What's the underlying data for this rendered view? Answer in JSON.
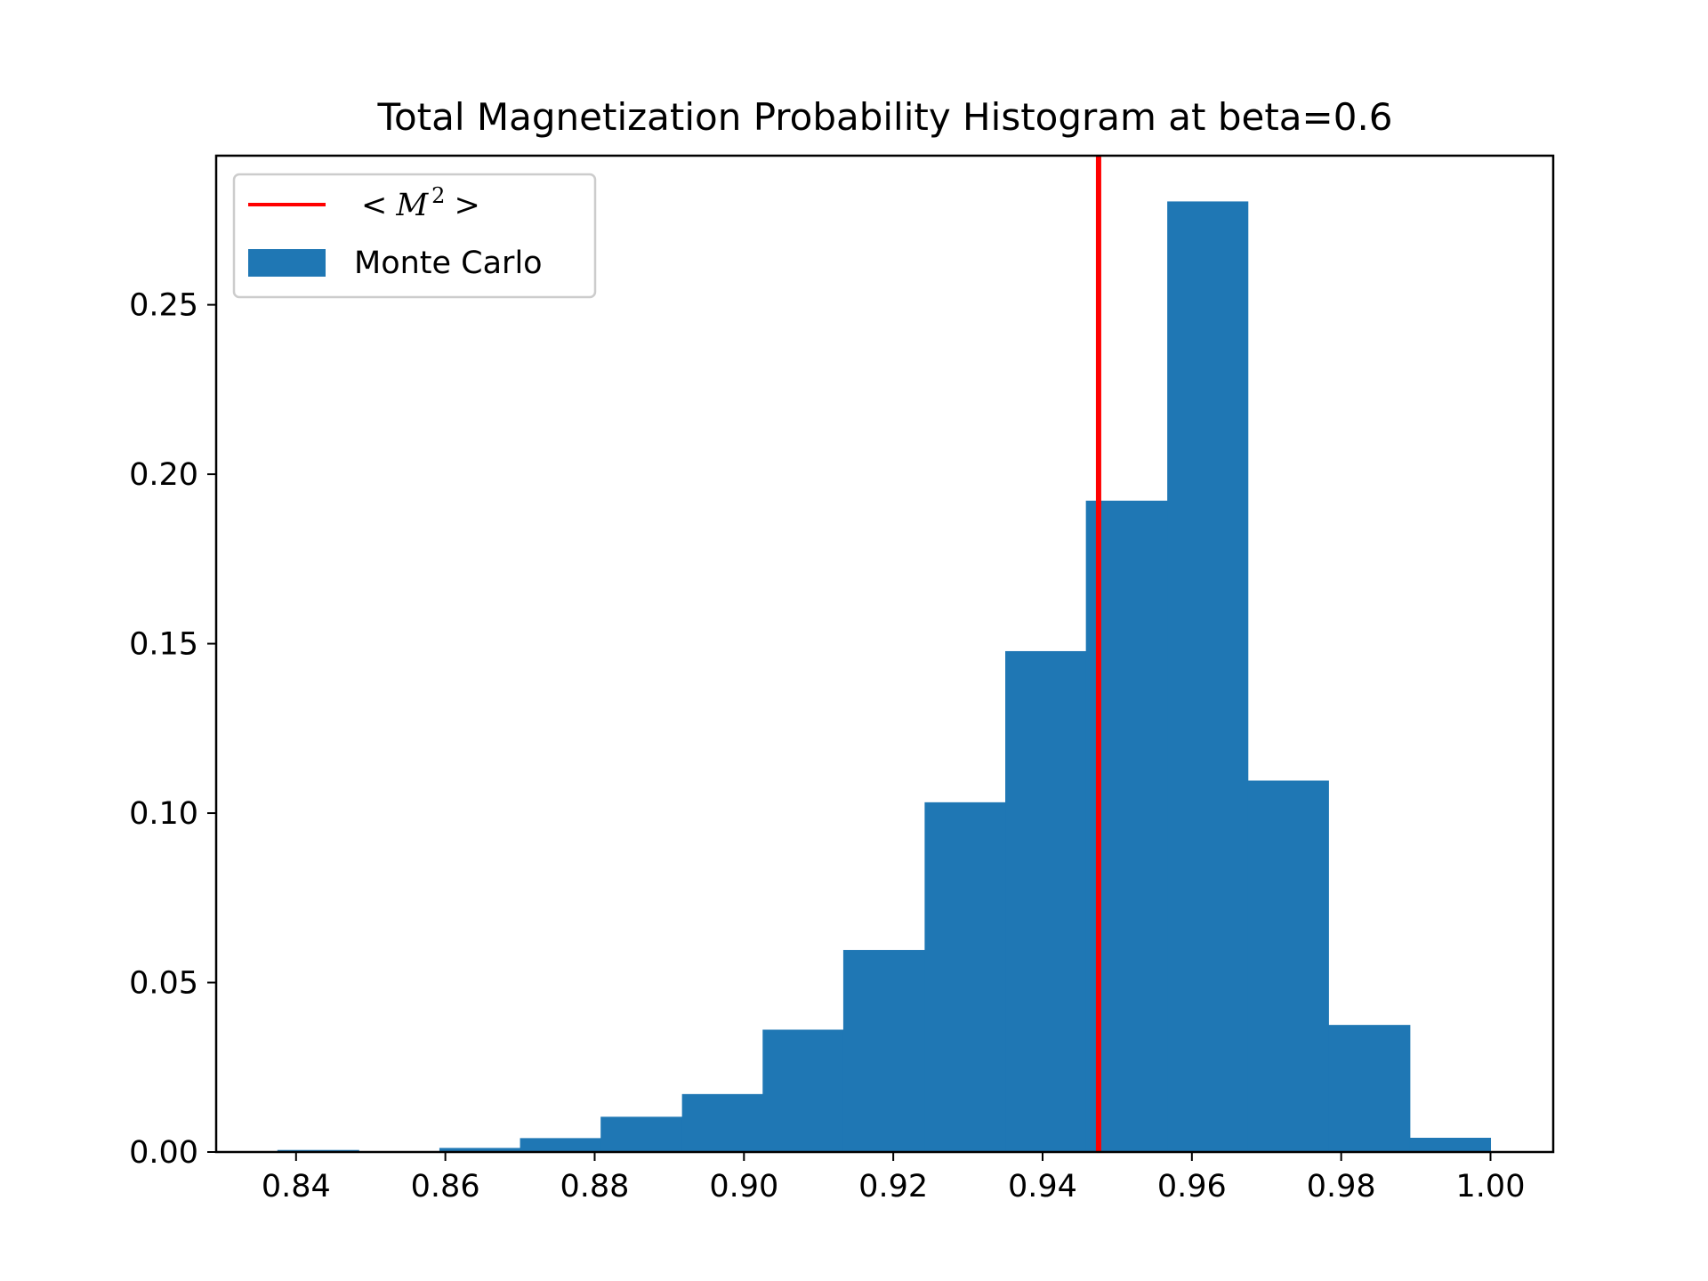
{
  "chart_data": {
    "type": "bar",
    "title": "Total Magnetization Probability Histogram at beta=0.6",
    "xlabel": "",
    "ylabel": "",
    "xlim": [
      0.8293,
      1.0084
    ],
    "ylim": [
      0,
      0.294
    ],
    "x_ticks": [
      "0.84",
      "0.86",
      "0.88",
      "0.90",
      "0.92",
      "0.94",
      "0.96",
      "0.98",
      "1.00"
    ],
    "x_tick_values": [
      0.84,
      0.86,
      0.88,
      0.9,
      0.92,
      0.94,
      0.96,
      0.98,
      1.0
    ],
    "y_ticks": [
      "0.00",
      "0.05",
      "0.10",
      "0.15",
      "0.20",
      "0.25"
    ],
    "y_tick_values": [
      0,
      0.05,
      0.1,
      0.15,
      0.2,
      0.25
    ],
    "bin_edges": [
      0.8375,
      0.8484,
      0.8592,
      0.87,
      0.8808,
      0.8917,
      0.9025,
      0.9133,
      0.9242,
      0.935,
      0.9458,
      0.9567,
      0.9675,
      0.9783,
      0.9892,
      1.0
    ],
    "values": [
      0.0006,
      0.0,
      0.0012,
      0.0041,
      0.0104,
      0.0171,
      0.0361,
      0.0596,
      0.1032,
      0.1478,
      0.1922,
      0.2805,
      0.1096,
      0.0375,
      0.0042
    ],
    "vline": {
      "x": 0.9475,
      "label": "< M² >"
    },
    "legend": {
      "position": "upper left",
      "entries": [
        {
          "label_left": "<",
          "label_var": "M",
          "label_sup": "2",
          "label_right": ">",
          "color": "#ff0000",
          "kind": "line"
        },
        {
          "label": "Monte Carlo",
          "color": "#1f77b4",
          "kind": "patch"
        }
      ]
    },
    "colors": {
      "bars": "#1f77b4",
      "vline": "#ff0000"
    }
  }
}
